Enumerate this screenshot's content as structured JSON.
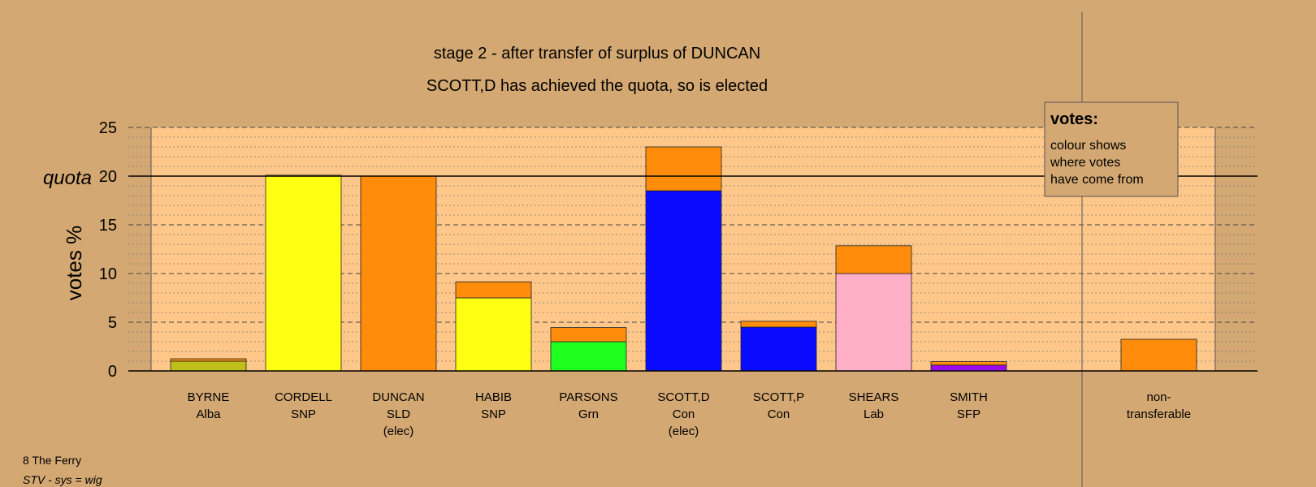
{
  "chart_data": {
    "type": "bar",
    "stacked": true,
    "title": "stage 2 - after transfer of surplus of DUNCAN",
    "subtitle": "SCOTT,D has achieved the quota, so is elected",
    "ylabel": "votes %",
    "quota_label": "quota",
    "quota_value": 20,
    "ylim": [
      0,
      25
    ],
    "yticks": [
      0,
      5,
      10,
      15,
      20,
      25
    ],
    "grid": true,
    "legend_position": "top-right",
    "legend": {
      "title": "votes:",
      "lines": [
        "colour shows",
        "where votes",
        "have come from"
      ]
    },
    "candidates": [
      {
        "name": "BYRNE",
        "party": "Alba",
        "note": "",
        "segments": [
          {
            "value": 1.0,
            "color": "#bfbf1a"
          },
          {
            "value": 0.25,
            "color": "#ff8c0a"
          }
        ]
      },
      {
        "name": "CORDELL",
        "party": "SNP",
        "note": "",
        "segments": [
          {
            "value": 20.1,
            "color": "#ffff14"
          }
        ]
      },
      {
        "name": "DUNCAN",
        "party": "SLD",
        "note": "(elec)",
        "segments": [
          {
            "value": 20.0,
            "color": "#ff8c0a"
          }
        ]
      },
      {
        "name": "HABIB",
        "party": "SNP",
        "note": "",
        "segments": [
          {
            "value": 7.5,
            "color": "#ffff14"
          },
          {
            "value": 1.65,
            "color": "#ff8c0a"
          }
        ]
      },
      {
        "name": "PARSONS",
        "party": "Grn",
        "note": "",
        "segments": [
          {
            "value": 3.0,
            "color": "#1eff1e"
          },
          {
            "value": 1.45,
            "color": "#ff8c0a"
          }
        ]
      },
      {
        "name": "SCOTT,D",
        "party": "Con",
        "note": "(elec)",
        "segments": [
          {
            "value": 18.5,
            "color": "#0a0aff"
          },
          {
            "value": 4.5,
            "color": "#ff8c0a"
          }
        ]
      },
      {
        "name": "SCOTT,P",
        "party": "Con",
        "note": "",
        "segments": [
          {
            "value": 4.5,
            "color": "#0a0aff"
          },
          {
            "value": 0.6,
            "color": "#ff8c0a"
          }
        ]
      },
      {
        "name": "SHEARS",
        "party": "Lab",
        "note": "",
        "segments": [
          {
            "value": 10.0,
            "color": "#ffaec8"
          },
          {
            "value": 2.85,
            "color": "#ff8c0a"
          }
        ]
      },
      {
        "name": "SMITH",
        "party": "SFP",
        "note": "",
        "segments": [
          {
            "value": 0.6,
            "color": "#9b0aee"
          },
          {
            "value": 0.35,
            "color": "#ff8c0a"
          }
        ]
      }
    ],
    "nontransferable": {
      "label_lines": [
        "non-",
        "transferable"
      ],
      "value": 3.25,
      "color": "#ff8c0a"
    }
  },
  "footer": {
    "ward": "8 The Ferry",
    "system": "STV - sys = wig"
  },
  "colors": {
    "page_background": "#d4a872",
    "plot_background": "#ffc88a"
  }
}
